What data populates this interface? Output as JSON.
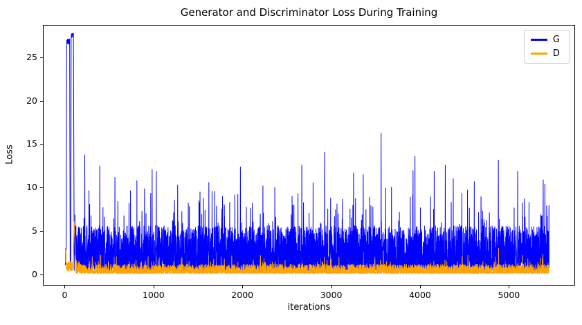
{
  "chart_data": {
    "type": "line",
    "title": "Generator and Discriminator Loss During Training",
    "xlabel": "iterations",
    "ylabel": "Loss",
    "grid": false,
    "legend_position": "upper right",
    "xlim": [
      -245,
      5745
    ],
    "ylim": [
      -1.27,
      28.71
    ],
    "x_tick_values": [
      0,
      1000,
      2000,
      3000,
      4000,
      5000
    ],
    "x_tick_labels": [
      "0",
      "1000",
      "2000",
      "3000",
      "4000",
      "5000"
    ],
    "y_tick_values": [
      0,
      5,
      10,
      15,
      20,
      25
    ],
    "y_tick_labels": [
      "0",
      "5",
      "10",
      "15",
      "20",
      "25"
    ],
    "n_points": 5460,
    "seed": 7,
    "series": [
      {
        "name": "G",
        "color": "#0000ff",
        "summary": "Generator loss: double spike to ~27.8 within first ~100 iterations, then dense noisy band ~0.4-6 with frequent spikes to 8-12",
        "initial_spike": {
          "rise_start": 10,
          "peak1": 27.2,
          "dip_iter": 55,
          "dip_value": 0.4,
          "peak2": 27.8,
          "fall_end": 100
        },
        "baseline": {
          "min": 0.35,
          "band_max": 5.6,
          "shape": 1.8,
          "spike_prob": 0.045,
          "spike_extra_min": 2.0,
          "spike_extra_max": 6.5
        },
        "notable_peaks": [
          [
            220,
            13.8
          ],
          [
            389,
            12.5
          ],
          [
            560,
            11.2
          ],
          [
            980,
            12.1
          ],
          [
            1027,
            11.9
          ],
          [
            1268,
            10.3
          ],
          [
            1620,
            10.6
          ],
          [
            1976,
            12.4
          ],
          [
            2230,
            10.2
          ],
          [
            2669,
            12.6
          ],
          [
            2926,
            14.1
          ],
          [
            3253,
            11.7
          ],
          [
            3362,
            11.5
          ],
          [
            3564,
            16.3
          ],
          [
            3946,
            13.6
          ],
          [
            4163,
            11.9
          ],
          [
            4288,
            12.6
          ],
          [
            4615,
            10.7
          ],
          [
            4887,
            13.2
          ],
          [
            5105,
            11.9
          ],
          [
            5393,
            10.9
          ]
        ]
      },
      {
        "name": "D",
        "color": "#ffa500",
        "summary": "Discriminator loss: spike to ~6.1 near iteration 100, then mostly 0-1.2 with occasional spikes to ~2-3",
        "initial_spike": {
          "rise_start": 85,
          "peak": 6.1,
          "peak_iter": 100,
          "fall_end": 118
        },
        "baseline": {
          "min": 0.04,
          "band_max": 1.15,
          "shape": 2.3,
          "spike_prob": 0.02,
          "spike_extra_min": 0.5,
          "spike_extra_max": 1.6
        },
        "notable_peaks": [
          [
            400,
            2.2
          ],
          [
            1060,
            1.9
          ],
          [
            2480,
            1.6
          ],
          [
            3590,
            2.7
          ],
          [
            4890,
            3.0
          ],
          [
            5390,
            2.3
          ]
        ]
      }
    ]
  }
}
